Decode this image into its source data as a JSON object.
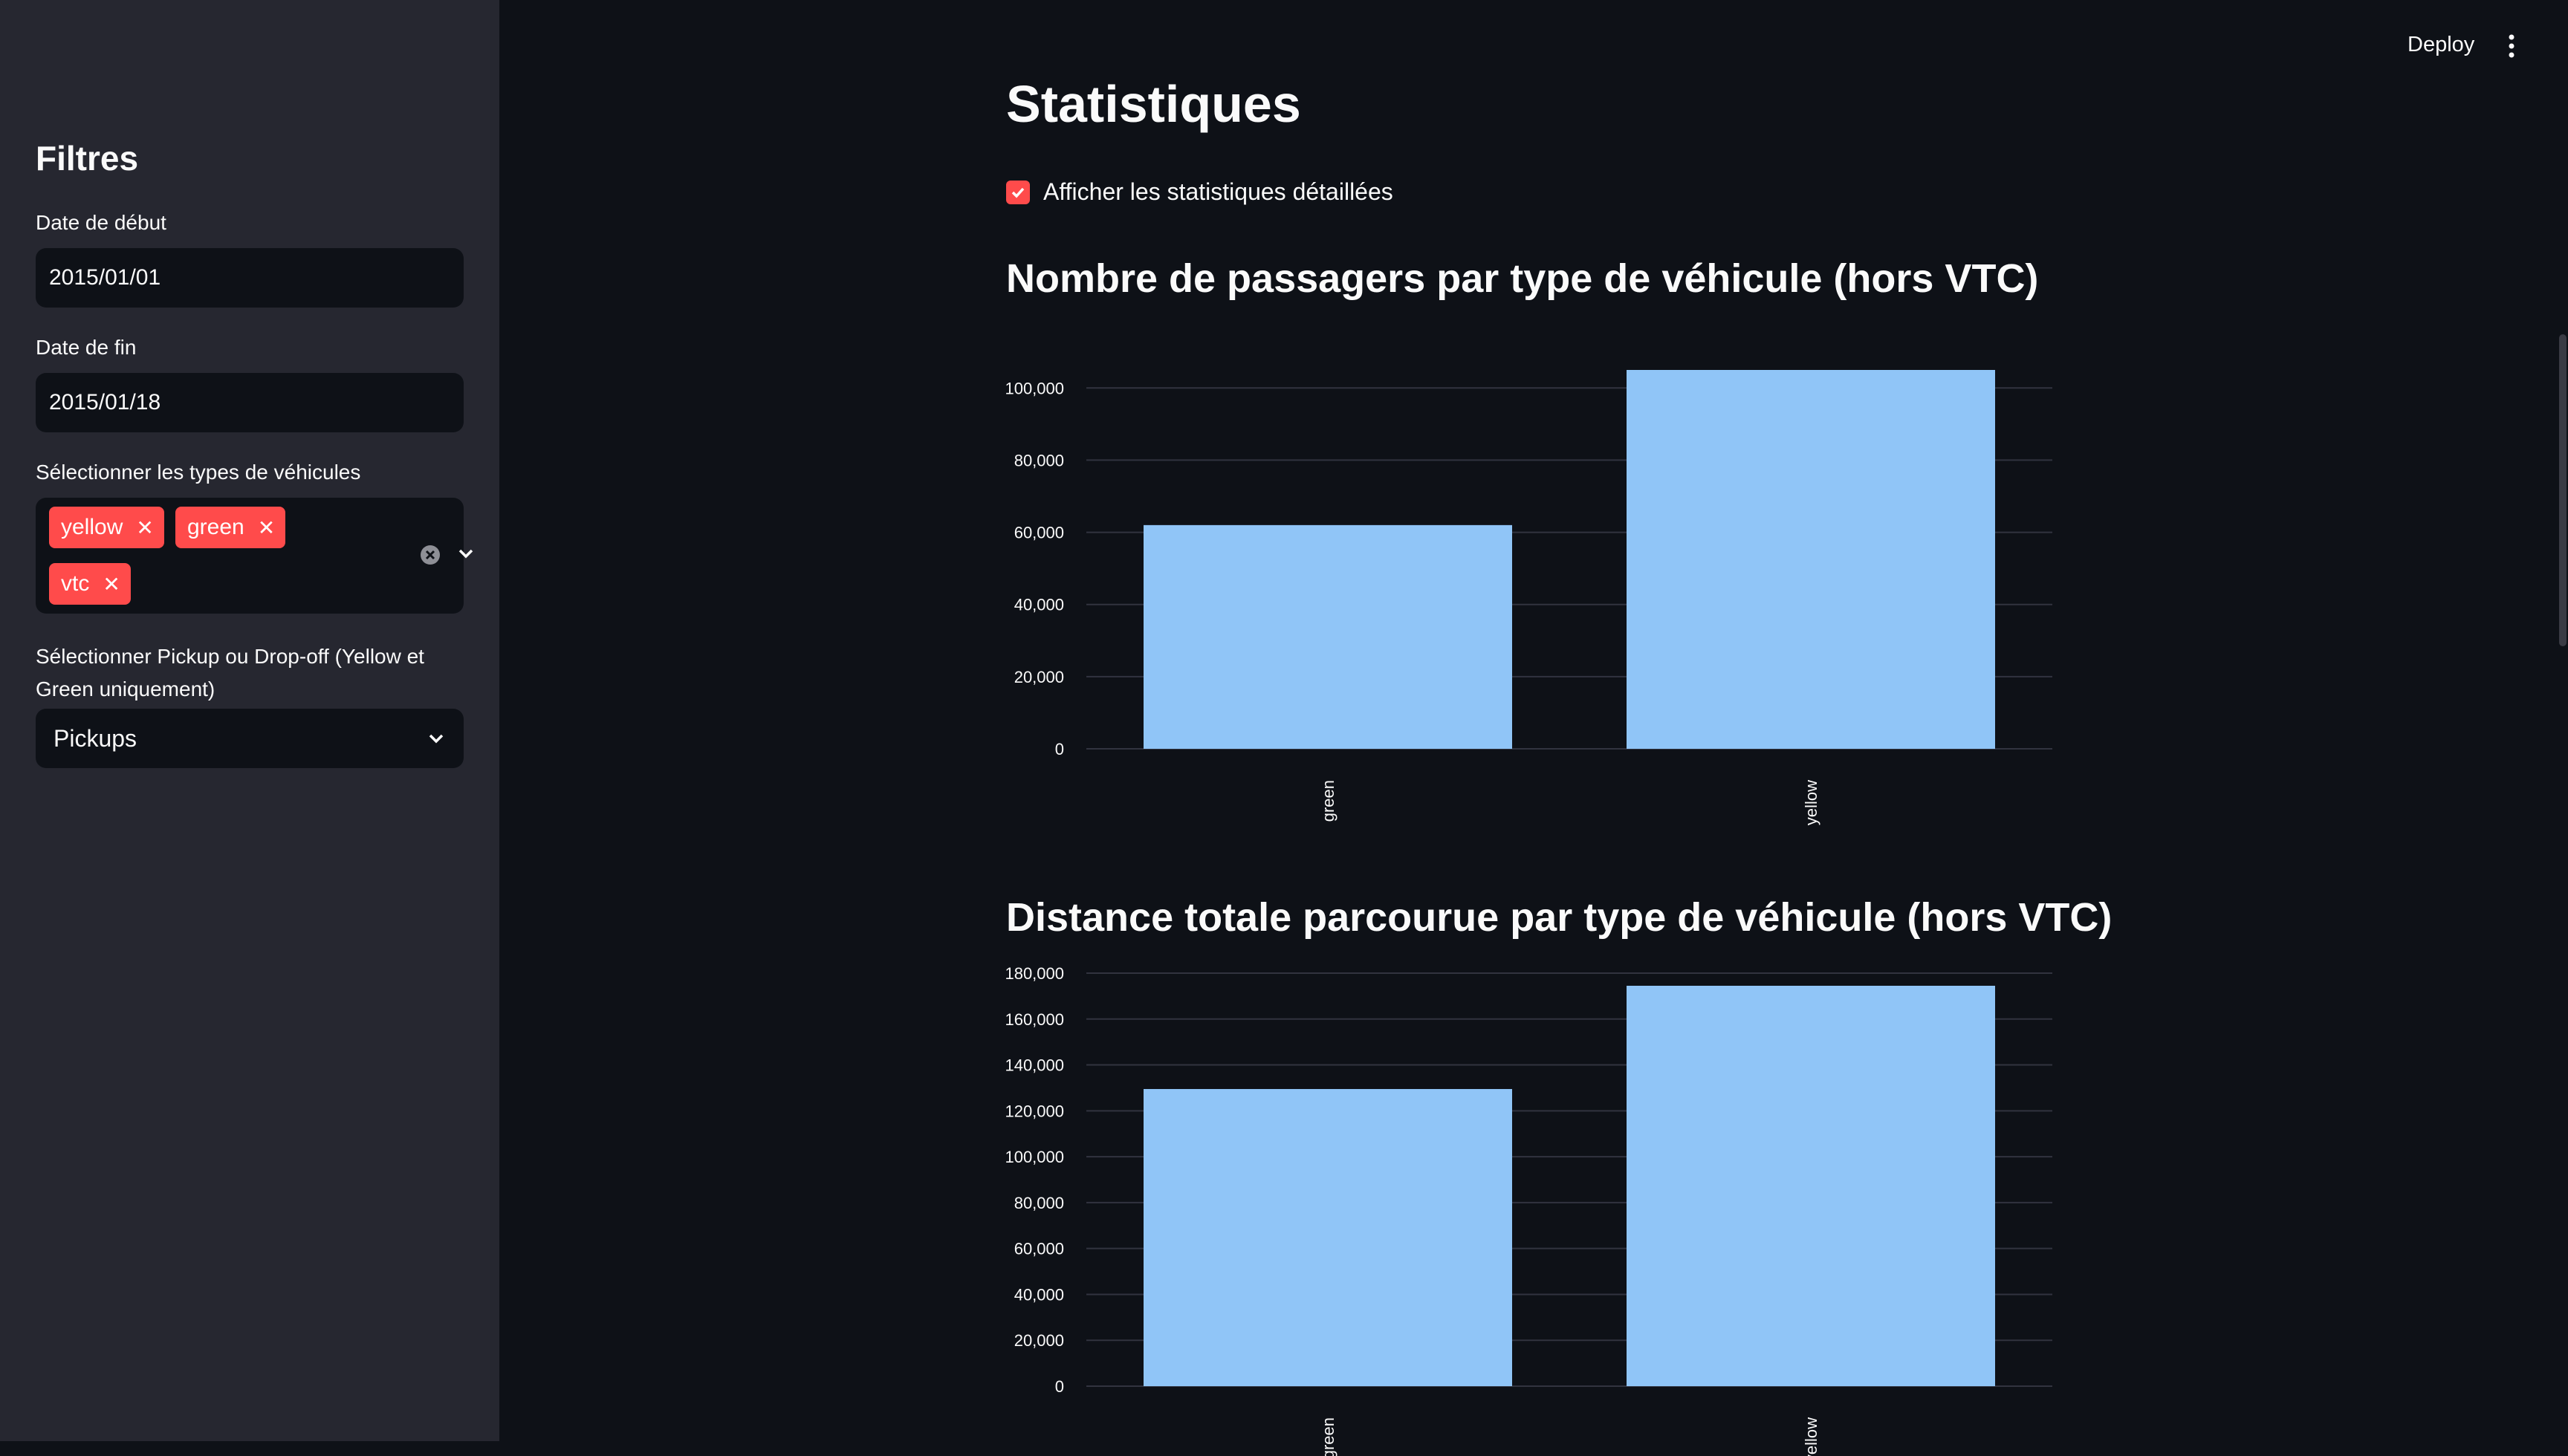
{
  "sidebar": {
    "title": "Filtres",
    "start_date_label": "Date de début",
    "start_date_value": "2015/01/01",
    "end_date_label": "Date de fin",
    "end_date_value": "2015/01/18",
    "vehicle_types_label": "Sélectionner les types de véhicules",
    "vehicle_types_selected": [
      "yellow",
      "green",
      "vtc"
    ],
    "pickup_dropoff_label": "Sélectionner Pickup ou Drop-off (Yellow et Green uniquement)",
    "pickup_dropoff_value": "Pickups"
  },
  "header": {
    "deploy_label": "Deploy"
  },
  "main": {
    "title": "Statistiques",
    "detailed_stats_label": "Afficher les statistiques détaillées",
    "detailed_stats_checked": true
  },
  "colors": {
    "accent": "#ff4b4b",
    "bar": "#90c5f7",
    "background": "#0e1117",
    "sidebar_background": "#262730"
  },
  "chart_data": [
    {
      "type": "bar",
      "title": "Nombre de passagers par type de véhicule (hors VTC)",
      "categories": [
        "green",
        "yellow"
      ],
      "values": [
        62000,
        105000
      ],
      "ylim": [
        0,
        105000
      ],
      "yticks": [
        0,
        20000,
        40000,
        60000,
        80000,
        100000
      ],
      "ytick_labels": [
        "0",
        "20,000",
        "40,000",
        "60,000",
        "80,000",
        "100,000"
      ],
      "grid": true
    },
    {
      "type": "bar",
      "title": "Distance totale parcourue par type de véhicule (hors VTC)",
      "categories": [
        "green",
        "yellow"
      ],
      "values": [
        129500,
        174500
      ],
      "ylim": [
        0,
        180000
      ],
      "yticks": [
        0,
        20000,
        40000,
        60000,
        80000,
        100000,
        120000,
        140000,
        160000,
        180000
      ],
      "ytick_labels": [
        "0",
        "20,000",
        "40,000",
        "60,000",
        "80,000",
        "100,000",
        "120,000",
        "140,000",
        "160,000",
        "180,000"
      ],
      "grid": true
    }
  ]
}
